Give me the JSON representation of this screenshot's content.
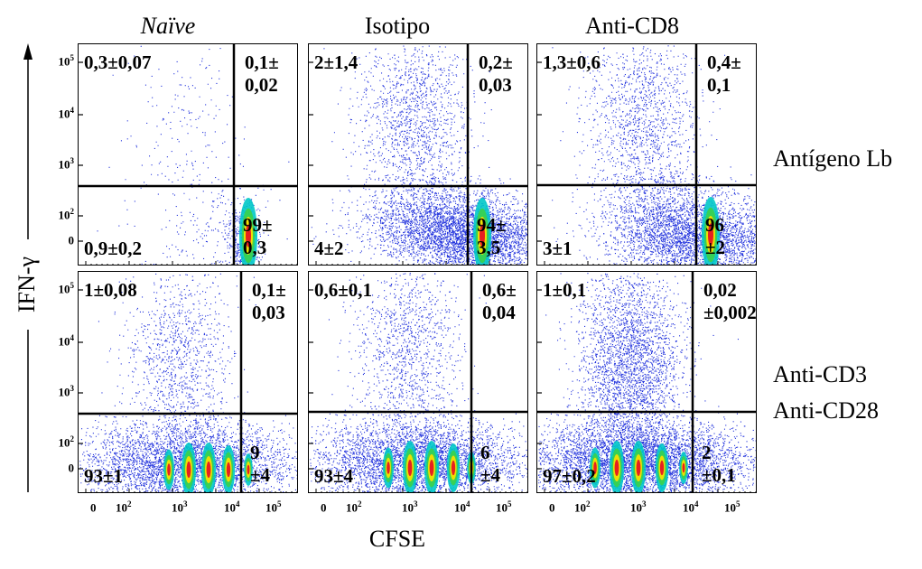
{
  "columns": [
    "Naïve",
    "Isotipo",
    "Anti-CD8"
  ],
  "rows": {
    "row1": "Antígeno Lb",
    "row2_line1": "Anti-CD3",
    "row2_line2": "Anti-CD28"
  },
  "axes": {
    "y_label": "IFN-γ",
    "x_label": "CFSE",
    "y_ticks": [
      {
        "label": "10",
        "exp": "5"
      },
      {
        "label": "10",
        "exp": "4"
      },
      {
        "label": "10",
        "exp": "3"
      },
      {
        "label": "10",
        "exp": "2"
      },
      {
        "label": "0",
        "exp": ""
      }
    ],
    "x_ticks": [
      {
        "label": "0",
        "exp": ""
      },
      {
        "label": "10",
        "exp": "2"
      },
      {
        "label": "10",
        "exp": "3"
      },
      {
        "label": "10",
        "exp": "4"
      },
      {
        "label": "10",
        "exp": "5"
      }
    ]
  },
  "panels": [
    {
      "tl": "0,3±0,07",
      "tr": "0,1±\n0,02",
      "bl": "0,9±0,2",
      "br": "99±\n0,3"
    },
    {
      "tl": "2±1,4",
      "tr": "0,2±\n0,03",
      "bl": "4±2",
      "br": "94±\n3,5"
    },
    {
      "tl": "1,3±0,6",
      "tr": "0,4±\n0,1",
      "bl": "3±1",
      "br": "96\n±2"
    },
    {
      "tl": "1±0,08",
      "tr": "0,1±\n0,03",
      "bl": "93±1",
      "br": "9\n±4"
    },
    {
      "tl": "0,6±0,1",
      "tr": "0,6±\n0,04",
      "bl": "93±4",
      "br": "6\n±4"
    },
    {
      "tl": "1±0,1",
      "tr": "0,02\n±0,002",
      "bl": "97±0,2",
      "br": "2\n±0,1"
    }
  ],
  "colors": {
    "dots": "#2233dd",
    "mid": "#00c8c8",
    "hot": "#f7e000",
    "core": "#e62020"
  }
}
